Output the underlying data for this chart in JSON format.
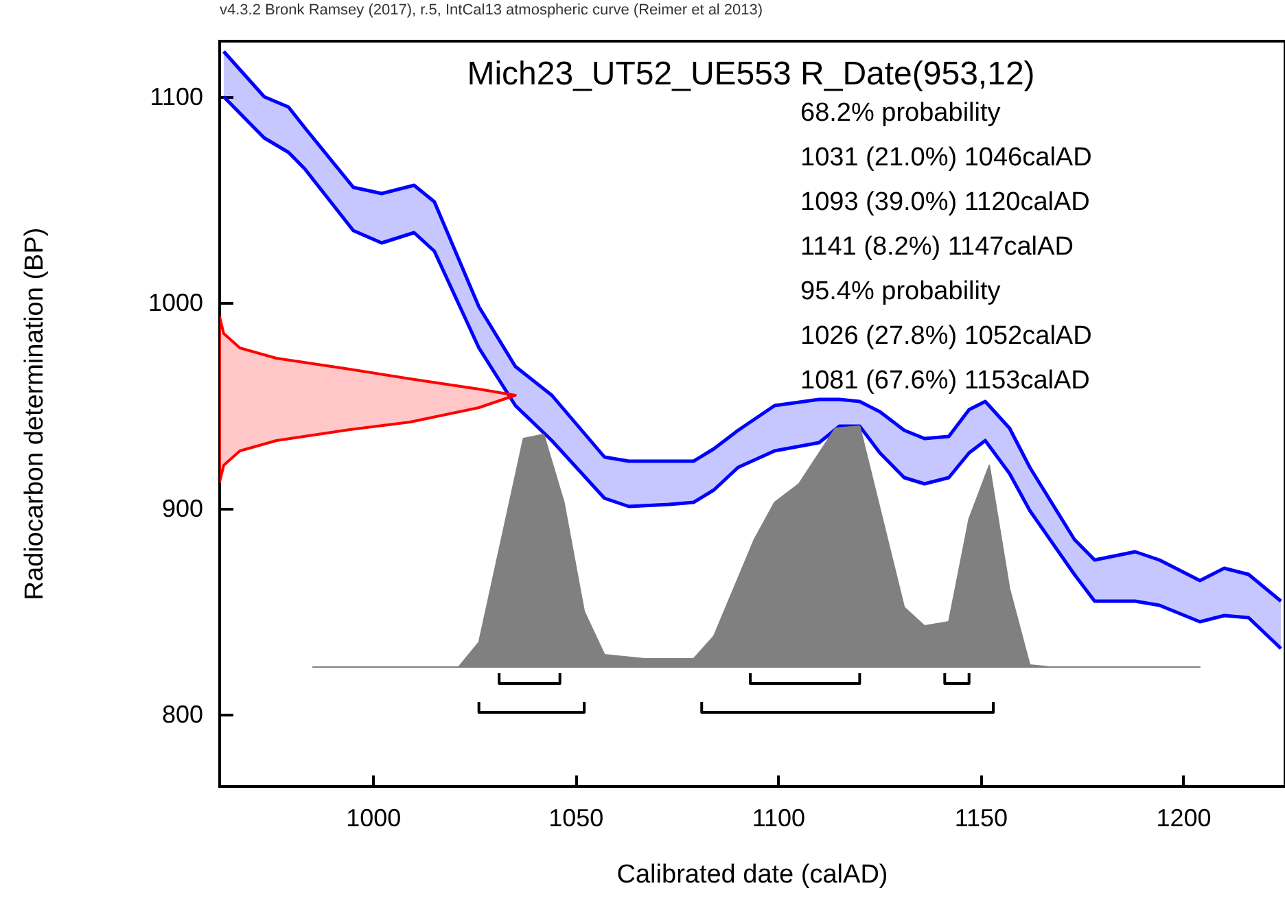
{
  "chart_data": {
    "type": "area",
    "title": "Mich23_UT52_UE553 R_Date(953,12)",
    "subtitle": "v4.3.2 Bronk Ramsey (2017), r.5, IntCal13 atmospheric curve (Reimer et al 2013)",
    "xlabel": "Calibrated date (calAD)",
    "ylabel": "Radiocarbon determination (BP)",
    "annotations": [
      "68.2% probability",
      "1031 (21.0%) 1046calAD",
      "1093 (39.0%) 1120calAD",
      "1141 (8.2%) 1147calAD",
      "95.4% probability",
      "1026 (27.8%) 1052calAD",
      "1081 (67.6%) 1153calAD"
    ],
    "xlim": [
      962,
      1225
    ],
    "xticks": [
      1000,
      1050,
      1100,
      1150,
      1200
    ],
    "ylim": [
      765,
      1127
    ],
    "yticks": [
      800,
      900,
      1000,
      1100
    ],
    "grid": false,
    "series": [
      {
        "color": "#0000ff",
        "x": [
          963,
          973,
          979,
          983,
          995,
          1002,
          1010,
          1015,
          1026,
          1035,
          1044,
          1057,
          1063,
          1073,
          1079,
          1084,
          1090,
          1099,
          1110,
          1115,
          1120,
          1125,
          1131,
          1136,
          1142,
          1147,
          1151,
          1157,
          1162,
          1173,
          1178,
          1188,
          1194,
          1204,
          1210,
          1216,
          1224
        ],
        "values": [
          1122,
          1100,
          1095,
          1085,
          1056,
          1053,
          1057,
          1049,
          998,
          969,
          955,
          925,
          923,
          923,
          923,
          929,
          938,
          950,
          953,
          953,
          952,
          947,
          938,
          934,
          935,
          948,
          952,
          939,
          920,
          885,
          875,
          879,
          875,
          865,
          871,
          868,
          855
        ]
      },
      {
        "type": "line",
        "color": "#0000ff",
        "x": [
          963,
          973,
          979,
          983,
          995,
          1002,
          1010,
          1015,
          1026,
          1035,
          1044,
          1057,
          1063,
          1073,
          1079,
          1084,
          1090,
          1099,
          1110,
          1115,
          1120,
          1125,
          1131,
          1136,
          1142,
          1147,
          1151,
          1157,
          1162,
          1173,
          1178,
          1188,
          1194,
          1204,
          1210,
          1216,
          1224
        ],
        "values": [
          1100,
          1080,
          1073,
          1065,
          1035,
          1029,
          1034,
          1025,
          978,
          950,
          933,
          905,
          901,
          902,
          903,
          909,
          920,
          928,
          932,
          940,
          940,
          927,
          915,
          912,
          915,
          927,
          933,
          917,
          899,
          868,
          855,
          855,
          853,
          845,
          848,
          847,
          832
        ]
      },
      {
        "color": "#808080",
        "x": [
          985,
          1021,
          1026,
          1037,
          1042,
          1047,
          1052,
          1057,
          1067,
          1073,
          1079,
          1084,
          1094,
          1099,
          1105,
          1114,
          1120,
          1131,
          1136,
          1142,
          1147,
          1152,
          1157,
          1162,
          1167,
          1204
        ],
        "values": [
          823,
          823,
          835,
          934,
          936,
          903,
          850,
          829,
          827,
          827,
          827,
          838,
          885,
          903,
          912,
          939,
          940,
          852,
          843,
          845,
          895,
          921,
          861,
          824,
          823,
          823
        ]
      },
      {
        "color": "#ff0000",
        "x": [
          962,
          963,
          967,
          976,
          993,
          1009,
          1026,
          1035,
          1026,
          1009,
          993,
          976,
          967,
          963,
          962
        ],
        "values": [
          993,
          985,
          978,
          973,
          968,
          963,
          958,
          955,
          949,
          942,
          938,
          933,
          928,
          921,
          913
        ]
      },
      {
        "type": "line",
        "color": "#000000",
        "x": [
          1031,
          1031,
          1046,
          1046
        ],
        "values": [
          820,
          815,
          815,
          820
        ]
      },
      {
        "type": "line",
        "color": "#000000",
        "x": [
          1093,
          1093,
          1120,
          1120
        ],
        "values": [
          820,
          815,
          815,
          820
        ]
      },
      {
        "type": "line",
        "color": "#000000",
        "x": [
          1141,
          1141,
          1147,
          1147
        ],
        "values": [
          820,
          815,
          815,
          820
        ]
      },
      {
        "type": "line",
        "color": "#000000",
        "x": [
          1026,
          1026,
          1052,
          1052
        ],
        "values": [
          806,
          801,
          801,
          806
        ]
      },
      {
        "type": "line",
        "color": "#000000",
        "x": [
          1081,
          1081,
          1153,
          1153
        ],
        "values": [
          806,
          801,
          801,
          806
        ]
      }
    ]
  }
}
